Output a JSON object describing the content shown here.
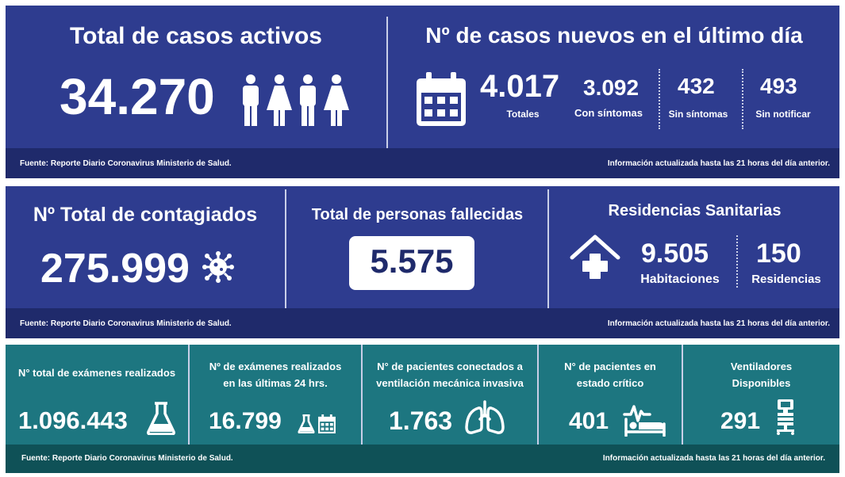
{
  "row1": {
    "active": {
      "title": "Total de casos activos",
      "value": "34.270"
    },
    "new": {
      "title": "Nº de casos nuevos en el último día",
      "total_value": "4.017",
      "total_label": "Totales",
      "sym_value": "3.092",
      "sym_label": "Con síntomas",
      "asym_value": "432",
      "asym_label": "Sin síntomas",
      "unrep_value": "493",
      "unrep_label": "Sin notificar"
    },
    "footer_left": "Fuente: Reporte Diario Coronavirus Ministerio de Salud.",
    "footer_right": "Información actualizada hasta las 21 horas  del día anterior."
  },
  "row2": {
    "infected": {
      "title": "Nº Total de contagiados",
      "value": "275.999"
    },
    "deaths": {
      "title": "Total de personas fallecidas",
      "value": "5.575"
    },
    "residences": {
      "title": "Residencias Sanitarias",
      "rooms_value": "9.505",
      "rooms_label": "Habitaciones",
      "res_value": "150",
      "res_label": "Residencias"
    },
    "footer_left": "Fuente: Reporte Diario Coronavirus Ministerio de Salud.",
    "footer_right": "Información actualizada hasta las 21 horas  del día anterior."
  },
  "row3": {
    "tests_total": {
      "title": "N° total de exámenes realizados",
      "value": "1.096.443"
    },
    "tests_24h": {
      "title_1": "Nº de exámenes realizados",
      "title_2": "en las últimas 24 hrs.",
      "value": "16.799"
    },
    "ventilated": {
      "title_1": "N° de pacientes conectados a",
      "title_2": "ventilación mecánica invasiva",
      "value": "1.763"
    },
    "critical": {
      "title_1": "N° de pacientes  en",
      "title_2": "estado crítico",
      "value": "401"
    },
    "ventilators": {
      "title_1": "Ventiladores",
      "title_2": "Disponibles",
      "value": "291"
    },
    "footer_left": "Fuente: Reporte Diario Coronavirus Ministerio de Salud.",
    "footer_right": "Información actualizada hasta las 21 horas  del día anterior."
  },
  "colors": {
    "blue": "#2e3c8f",
    "navy_footer": "#1f2a6b",
    "teal": "#1d7680",
    "teal_footer": "#0f5157",
    "death_text": "#1f2a6b"
  },
  "icons": [
    "male-icon",
    "female-icon",
    "calendar-icon",
    "virus-icon",
    "house-medical-icon",
    "flask-icon",
    "lungs-icon",
    "hospital-bed-icon",
    "ventilator-icon"
  ]
}
